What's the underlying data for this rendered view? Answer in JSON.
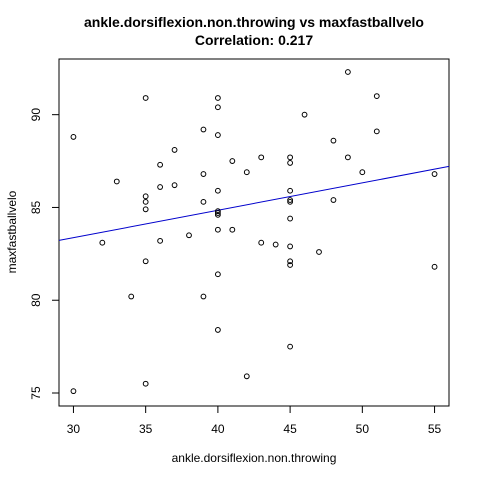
{
  "chart_data": {
    "type": "scatter",
    "title": "ankle.dorsiflexion.non.throwing vs maxfastballvelo",
    "subtitle": "Correlation: 0.217",
    "xlabel": "ankle.dorsiflexion.non.throwing",
    "ylabel": "maxfastballvelo",
    "xlim": [
      29,
      56
    ],
    "ylim": [
      74.3,
      93.0
    ],
    "x_ticks": [
      30,
      35,
      40,
      45,
      50,
      55
    ],
    "y_ticks": [
      75,
      80,
      85,
      90
    ],
    "grid": false,
    "point_color": "#000000",
    "line_color": "#0000cc",
    "regression_line": {
      "intercept": 78.94,
      "slope": 0.1477
    },
    "points": [
      {
        "x": 30,
        "y": 88.8
      },
      {
        "x": 30,
        "y": 75.1
      },
      {
        "x": 32,
        "y": 83.1
      },
      {
        "x": 33,
        "y": 86.4
      },
      {
        "x": 34,
        "y": 80.2
      },
      {
        "x": 35,
        "y": 90.9
      },
      {
        "x": 35,
        "y": 85.6
      },
      {
        "x": 35,
        "y": 85.3
      },
      {
        "x": 35,
        "y": 84.9
      },
      {
        "x": 35,
        "y": 82.1
      },
      {
        "x": 35,
        "y": 75.5
      },
      {
        "x": 36,
        "y": 87.3
      },
      {
        "x": 36,
        "y": 86.1
      },
      {
        "x": 36,
        "y": 83.2
      },
      {
        "x": 37,
        "y": 88.1
      },
      {
        "x": 37,
        "y": 86.2
      },
      {
        "x": 38,
        "y": 83.5
      },
      {
        "x": 39,
        "y": 89.2
      },
      {
        "x": 39,
        "y": 86.8
      },
      {
        "x": 39,
        "y": 85.3
      },
      {
        "x": 39,
        "y": 80.2
      },
      {
        "x": 40,
        "y": 90.9
      },
      {
        "x": 40,
        "y": 90.4
      },
      {
        "x": 40,
        "y": 88.9
      },
      {
        "x": 40,
        "y": 85.9
      },
      {
        "x": 40,
        "y": 84.8
      },
      {
        "x": 40,
        "y": 84.7
      },
      {
        "x": 40,
        "y": 84.6
      },
      {
        "x": 40,
        "y": 83.8
      },
      {
        "x": 40,
        "y": 81.4
      },
      {
        "x": 40,
        "y": 78.4
      },
      {
        "x": 41,
        "y": 87.5
      },
      {
        "x": 41,
        "y": 83.8
      },
      {
        "x": 42,
        "y": 86.9
      },
      {
        "x": 42,
        "y": 75.9
      },
      {
        "x": 43,
        "y": 87.7
      },
      {
        "x": 43,
        "y": 83.1
      },
      {
        "x": 44,
        "y": 83.0
      },
      {
        "x": 45,
        "y": 87.7
      },
      {
        "x": 45,
        "y": 87.4
      },
      {
        "x": 45,
        "y": 85.9
      },
      {
        "x": 45,
        "y": 85.4
      },
      {
        "x": 45,
        "y": 85.3
      },
      {
        "x": 45,
        "y": 84.4
      },
      {
        "x": 45,
        "y": 82.9
      },
      {
        "x": 45,
        "y": 82.1
      },
      {
        "x": 45,
        "y": 81.9
      },
      {
        "x": 45,
        "y": 77.5
      },
      {
        "x": 46,
        "y": 90.0
      },
      {
        "x": 47,
        "y": 82.6
      },
      {
        "x": 48,
        "y": 88.6
      },
      {
        "x": 48,
        "y": 85.4
      },
      {
        "x": 49,
        "y": 92.3
      },
      {
        "x": 49,
        "y": 87.7
      },
      {
        "x": 50,
        "y": 86.9
      },
      {
        "x": 51,
        "y": 91.0
      },
      {
        "x": 51,
        "y": 89.1
      },
      {
        "x": 55,
        "y": 86.8
      },
      {
        "x": 55,
        "y": 81.8
      }
    ]
  }
}
